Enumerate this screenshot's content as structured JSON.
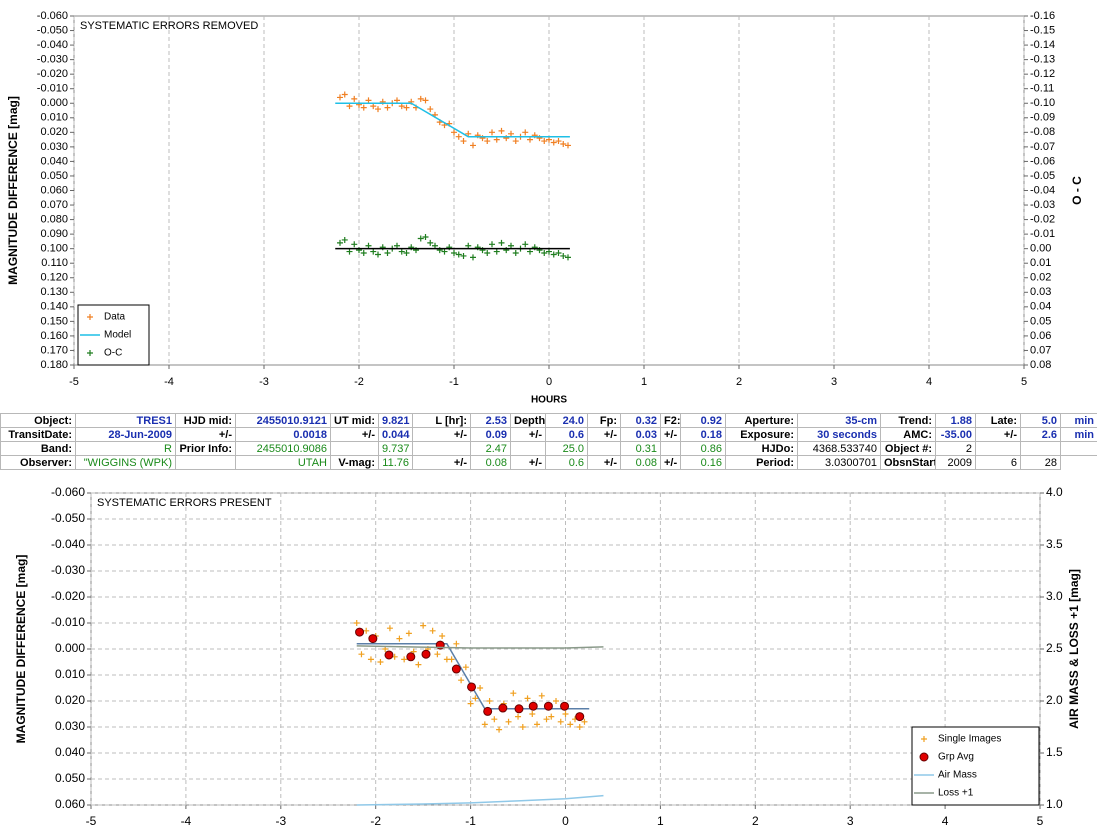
{
  "chart_data": [
    {
      "type": "scatter",
      "title": "SYSTEMATIC ERRORS REMOVED",
      "x_label": "HOURS",
      "y_label": "MAGNITUDE DIFFERENCE [mag]",
      "y2_label": "O - C",
      "xlim": [
        -5,
        5
      ],
      "xticks": [
        -5,
        -4,
        -3,
        -2,
        -1,
        0,
        1,
        2,
        3,
        4,
        5
      ],
      "ylim": [
        0.18,
        -0.06
      ],
      "yticks": [
        {
          "value": -0.06,
          "label": "-0.060"
        },
        {
          "value": -0.05,
          "label": "-0.050"
        },
        {
          "value": -0.04,
          "label": "-0.040"
        },
        {
          "value": -0.03,
          "label": "-0.030"
        },
        {
          "value": -0.02,
          "label": "-0.020"
        },
        {
          "value": -0.01,
          "label": "-0.010"
        },
        {
          "value": 0,
          "label": "0.000"
        },
        {
          "value": 0.01,
          "label": "0.010"
        },
        {
          "value": 0.02,
          "label": "0.020"
        },
        {
          "value": 0.03,
          "label": "0.030"
        },
        {
          "value": 0.04,
          "label": "0.040"
        },
        {
          "value": 0.05,
          "label": "0.050"
        },
        {
          "value": 0.06,
          "label": "0.060"
        },
        {
          "value": 0.07,
          "label": "0.070"
        },
        {
          "value": 0.08,
          "label": "0.080"
        },
        {
          "value": 0.09,
          "label": "0.090"
        },
        {
          "value": 0.1,
          "label": "0.100"
        },
        {
          "value": 0.11,
          "label": "0.110"
        },
        {
          "value": 0.12,
          "label": "0.120"
        },
        {
          "value": 0.13,
          "label": "0.130"
        },
        {
          "value": 0.14,
          "label": "0.140"
        },
        {
          "value": 0.15,
          "label": "0.150"
        },
        {
          "value": 0.16,
          "label": "0.160"
        },
        {
          "value": 0.17,
          "label": "0.170"
        },
        {
          "value": 0.18,
          "label": "0.180"
        }
      ],
      "y2lim": [
        0.08,
        -0.16
      ],
      "y2ticks": [
        -0.16,
        -0.15,
        -0.14,
        -0.13,
        -0.12,
        -0.11,
        {
          "value": -0.1,
          "label": "-0.10"
        },
        -0.09,
        -0.08,
        -0.07,
        -0.06,
        -0.05,
        -0.04,
        -0.03,
        -0.02,
        -0.01,
        {
          "value": 0,
          "label": "0.00"
        },
        0.01,
        0.02,
        0.03,
        0.04,
        0.05,
        0.06,
        0.07,
        0.08
      ],
      "grid": "x",
      "legend": "lower left",
      "series": [
        {
          "name": "Data",
          "color": "#f07f22",
          "marker": "plus",
          "x": [
            -2.2,
            -2.15,
            -2.1,
            -2.05,
            -2,
            -1.95,
            -1.9,
            -1.85,
            -1.8,
            -1.75,
            -1.7,
            -1.65,
            -1.6,
            -1.55,
            -1.5,
            -1.45,
            -1.4,
            -1.35,
            -1.3,
            -1.25,
            -1.2,
            -1.15,
            -1.1,
            -1.05,
            -1,
            -0.95,
            -0.9,
            -0.85,
            -0.8,
            -0.75,
            -0.7,
            -0.65,
            -0.6,
            -0.55,
            -0.5,
            -0.45,
            -0.4,
            -0.35,
            -0.3,
            -0.25,
            -0.2,
            -0.15,
            -0.1,
            -0.05,
            0,
            0.05,
            0.1,
            0.15,
            0.2
          ],
          "values": [
            -0.004,
            -0.006,
            0.002,
            -0.003,
            0.001,
            0.003,
            -0.002,
            0.002,
            0.004,
            -0.001,
            0.003,
            0,
            -0.002,
            0.002,
            0.003,
            -0.001,
            0.003,
            -0.003,
            -0.002,
            0.004,
            0.008,
            0.013,
            0.015,
            0.014,
            0.02,
            0.023,
            0.026,
            0.021,
            0.029,
            0.022,
            0.024,
            0.026,
            0.02,
            0.025,
            0.019,
            0.024,
            0.021,
            0.026,
            0.023,
            0.02,
            0.025,
            0.022,
            0.024,
            0.026,
            0.025,
            0.027,
            0.026,
            0.028,
            0.029
          ]
        },
        {
          "name": "Model",
          "color": "#1fbfe6",
          "marker": "line",
          "x": [
            -2.25,
            -1.45,
            -0.85,
            0.22
          ],
          "values": [
            0,
            0,
            0.023,
            0.023
          ]
        },
        {
          "name": "O-C",
          "color": "#1e7d1e",
          "marker": "plus",
          "axis": "y2",
          "x": [
            -2.2,
            -2.15,
            -2.1,
            -2.05,
            -2,
            -1.95,
            -1.9,
            -1.85,
            -1.8,
            -1.75,
            -1.7,
            -1.65,
            -1.6,
            -1.55,
            -1.5,
            -1.45,
            -1.4,
            -1.35,
            -1.3,
            -1.25,
            -1.2,
            -1.15,
            -1.1,
            -1.05,
            -1,
            -0.95,
            -0.9,
            -0.85,
            -0.8,
            -0.75,
            -0.7,
            -0.65,
            -0.6,
            -0.55,
            -0.5,
            -0.45,
            -0.4,
            -0.35,
            -0.3,
            -0.25,
            -0.2,
            -0.15,
            -0.1,
            -0.05,
            0,
            0.05,
            0.1,
            0.15,
            0.2
          ],
          "values": [
            -0.004,
            -0.006,
            0.002,
            -0.003,
            0.001,
            0.003,
            -0.002,
            0.002,
            0.004,
            -0.001,
            0.003,
            0,
            -0.002,
            0.002,
            0.003,
            -0.001,
            0.001,
            -0.007,
            -0.008,
            -0.004,
            -0.002,
            0.001,
            0.002,
            -0.001,
            0.003,
            0.004,
            0.005,
            -0.002,
            0.006,
            -0.001,
            0.001,
            0.003,
            -0.003,
            0.002,
            -0.004,
            0.001,
            -0.002,
            0.003,
            0,
            -0.003,
            0.002,
            -0.001,
            0.001,
            0.003,
            0.002,
            0.004,
            0.003,
            0.005,
            0.006
          ]
        },
        {
          "color": "#000000",
          "marker": "line",
          "axis": "y2",
          "x": [
            -2.25,
            0.22
          ],
          "values": [
            0,
            0
          ]
        }
      ]
    },
    {
      "type": "scatter",
      "title": "SYSTEMATIC ERRORS PRESENT",
      "y_label": "MAGNITUDE DIFFERENCE [mag]",
      "y2_label": "AIR MASS & LOSS +1 [mag]",
      "xlim": [
        -5,
        5
      ],
      "xticks": [
        -5,
        -4,
        -3,
        -2,
        -1,
        0,
        1,
        2,
        3,
        4,
        5
      ],
      "ylim": [
        0.06,
        -0.06
      ],
      "yticks": [
        {
          "value": -0.06,
          "label": "-0.060"
        },
        {
          "value": -0.05,
          "label": "-0.050"
        },
        {
          "value": -0.04,
          "label": "-0.040"
        },
        {
          "value": -0.03,
          "label": "-0.030"
        },
        {
          "value": -0.02,
          "label": "-0.020"
        },
        {
          "value": -0.01,
          "label": "-0.010"
        },
        {
          "value": 0,
          "label": "0.000"
        },
        {
          "value": 0.01,
          "label": "0.010"
        },
        {
          "value": 0.02,
          "label": "0.020"
        },
        {
          "value": 0.03,
          "label": "0.030"
        },
        {
          "value": 0.04,
          "label": "0.040"
        },
        {
          "value": 0.05,
          "label": "0.050"
        },
        {
          "value": 0.06,
          "label": "0.060"
        }
      ],
      "y2lim": [
        1,
        4
      ],
      "y2ticks": [
        {
          "value": 1,
          "label": "1.0"
        },
        1.5,
        {
          "value": 2,
          "label": "2.0"
        },
        2.5,
        {
          "value": 3,
          "label": "3.0"
        },
        3.5,
        {
          "value": 4,
          "label": "4.0"
        }
      ],
      "grid": "both",
      "legend": "lower right",
      "series": [
        {
          "name": "Single Images",
          "color": "#f0a020",
          "marker": "plus",
          "x": [
            -2.2,
            -2.15,
            -2.1,
            -2.05,
            -2,
            -1.95,
            -1.9,
            -1.85,
            -1.8,
            -1.75,
            -1.7,
            -1.65,
            -1.6,
            -1.55,
            -1.5,
            -1.45,
            -1.4,
            -1.35,
            -1.3,
            -1.25,
            -1.2,
            -1.15,
            -1.1,
            -1.05,
            -1,
            -0.95,
            -0.9,
            -0.85,
            -0.8,
            -0.75,
            -0.7,
            -0.65,
            -0.6,
            -0.55,
            -0.5,
            -0.45,
            -0.4,
            -0.35,
            -0.3,
            -0.25,
            -0.2,
            -0.15,
            -0.1,
            -0.05,
            0,
            0.05,
            0.1,
            0.15,
            0.2
          ],
          "values": [
            -0.01,
            0.002,
            -0.007,
            0.004,
            -0.005,
            0.005,
            0,
            -0.008,
            0.003,
            -0.004,
            0.004,
            -0.006,
            0.001,
            0.006,
            -0.009,
            0,
            -0.007,
            0.002,
            -0.005,
            0.004,
            0.004,
            -0.002,
            0.012,
            0.007,
            0.021,
            0.019,
            0.015,
            0.029,
            0.02,
            0.027,
            0.031,
            0.021,
            0.028,
            0.017,
            0.026,
            0.03,
            0.019,
            0.025,
            0.029,
            0.018,
            0.027,
            0.026,
            0.02,
            0.028,
            0.025,
            0.029,
            0.027,
            0.03,
            0.028
          ]
        },
        {
          "color": "#5b7fa8",
          "marker": "line",
          "x": [
            -2.2,
            -1.25,
            -0.85,
            0.25
          ],
          "values": [
            -0.002,
            -0.002,
            0.023,
            0.023
          ]
        },
        {
          "name": "Grp Avg",
          "color": "#e00000",
          "marker": "circle",
          "x": [
            -2.17,
            -2.03,
            -1.86,
            -1.63,
            -1.47,
            -1.32,
            -1.15,
            -0.99,
            -0.82,
            -0.66,
            -0.49,
            -0.34,
            -0.18,
            -0.01,
            0.15
          ],
          "values": [
            -0.0065,
            -0.004,
            0.0023,
            0.003,
            0.002,
            -0.0015,
            0.0077,
            0.0146,
            0.024,
            0.0227,
            0.023,
            0.022,
            0.022,
            0.022,
            0.026
          ]
        },
        {
          "name": "Air Mass",
          "color": "#8fc8e8",
          "marker": "line",
          "axis": "y2",
          "x": [
            -2.2,
            -1.5,
            -1,
            -0.5,
            0,
            0.4
          ],
          "values": [
            1,
            1.01,
            1.02,
            1.04,
            1.06,
            1.09
          ]
        },
        {
          "name": "Loss +1",
          "color": "#8a9a8a",
          "marker": "line",
          "axis": "y2",
          "x": [
            -2.2,
            -1,
            0,
            0.4
          ],
          "values": [
            2.53,
            2.51,
            2.51,
            2.52
          ]
        }
      ]
    }
  ],
  "table": {
    "rows": [
      [
        "Object:",
        "TRES1",
        "HJD mid:",
        "2455010.9121",
        "UT mid:",
        "9.821",
        "L [hr]:",
        "2.53",
        "Depth:",
        "24.0",
        "Fp:",
        "0.32",
        "F2:",
        "0.92",
        "Aperture:",
        "35-cm",
        "Trend:",
        "1.88",
        "Late:",
        "5.0",
        "min"
      ],
      [
        "TransitDate:",
        "28-Jun-2009",
        "+/-",
        "0.0018",
        "+/-",
        "0.044",
        "+/-",
        "0.09",
        "+/-",
        "0.6",
        "+/-",
        "0.03",
        "+/-",
        "0.18",
        "Exposure:",
        "30 seconds",
        "AMC:",
        "-35.00",
        "+/-",
        "2.6",
        "min"
      ],
      [
        "Band:",
        "R",
        "Prior Info:",
        "2455010.9086",
        null,
        "9.737",
        null,
        "2.47",
        null,
        "25.0",
        null,
        "0.31",
        null,
        "0.86",
        "HJDo:",
        "4368.533740",
        "Object #:",
        "2",
        null,
        null,
        null
      ],
      [
        "Observer:",
        "\"WIGGINS (WPK)",
        null,
        "UTAH",
        "V-mag:",
        "11.76",
        "+/-",
        "0.08",
        "+/-",
        "0.6",
        "+/-",
        "0.08",
        "+/-",
        "0.16",
        "Period:",
        "3.0300701",
        "ObsnStartDate:",
        "2009",
        "6",
        "28"
      ]
    ]
  }
}
